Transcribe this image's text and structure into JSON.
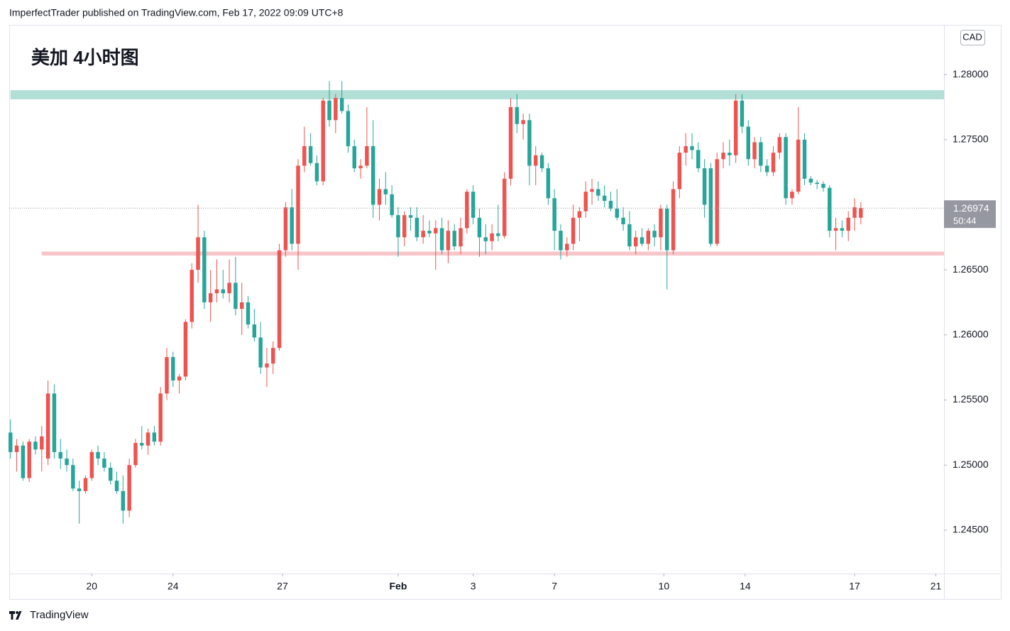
{
  "header": "ImperfectTrader published on TradingView.com, Feb 17, 2022 09:09 UTC+8",
  "footer": "TradingView",
  "chart_data": {
    "type": "candlestick",
    "title": "美加 4小时图",
    "currency": "CAD",
    "countdown": "50:44",
    "up_color": "#ef5350",
    "down_color": "#26a69a",
    "xlim": [
      -0.2,
      149.3
    ],
    "xticks": [
      {
        "value": 13,
        "label": "20"
      },
      {
        "value": 26,
        "label": "24"
      },
      {
        "value": 43.5,
        "label": "27"
      },
      {
        "value": 62,
        "label": "Feb"
      },
      {
        "value": 74,
        "label": "3"
      },
      {
        "value": 87,
        "label": "7"
      },
      {
        "value": 104.5,
        "label": "10"
      },
      {
        "value": 117.5,
        "label": "14"
      },
      {
        "value": 135,
        "label": "17"
      },
      {
        "value": 148,
        "label": "21"
      }
    ],
    "ylim": [
      1.24167,
      1.28382
    ],
    "yticks": [
      {
        "value": 1.28,
        "label": "1.28000"
      },
      {
        "value": 1.275,
        "label": "1.27500"
      },
      {
        "value": 1.27,
        "label": "1.27000"
      },
      {
        "value": 1.265,
        "label": "1.26500"
      },
      {
        "value": 1.26,
        "label": "1.26000"
      },
      {
        "value": 1.255,
        "label": "1.25500"
      },
      {
        "value": 1.25,
        "label": "1.25000"
      },
      {
        "value": 1.245,
        "label": "1.24500"
      }
    ],
    "zones": [
      {
        "start": 0,
        "from": 1.2781,
        "to": 1.2788,
        "color": "#b2dfd6"
      },
      {
        "start": 5,
        "from": 1.2661,
        "to": 1.2664,
        "color": "#f8c5c8"
      }
    ],
    "candles": [
      [
        1.2525,
        1.2535,
        1.2505,
        1.251
      ],
      [
        1.251,
        1.252,
        1.2495,
        1.2515
      ],
      [
        1.2515,
        1.2518,
        1.2488,
        1.249
      ],
      [
        1.249,
        1.252,
        1.2487,
        1.2518
      ],
      [
        1.2518,
        1.2522,
        1.2508,
        1.2512
      ],
      [
        1.2512,
        1.253,
        1.2495,
        1.2522
      ],
      [
        1.2505,
        1.2565,
        1.25,
        1.2555
      ],
      [
        1.2555,
        1.2562,
        1.2505,
        1.251
      ],
      [
        1.251,
        1.252,
        1.2497,
        1.2505
      ],
      [
        1.2505,
        1.2512,
        1.2495,
        1.25
      ],
      [
        1.25,
        1.2505,
        1.248,
        1.2482
      ],
      [
        1.2482,
        1.2488,
        1.2455,
        1.248
      ],
      [
        1.248,
        1.2492,
        1.2478,
        1.249
      ],
      [
        1.249,
        1.2512,
        1.2488,
        1.251
      ],
      [
        1.251,
        1.2515,
        1.25,
        1.2505
      ],
      [
        1.2505,
        1.251,
        1.2495,
        1.2498
      ],
      [
        1.2498,
        1.2502,
        1.2485,
        1.2488
      ],
      [
        1.2488,
        1.2495,
        1.2478,
        1.248
      ],
      [
        1.248,
        1.2492,
        1.2455,
        1.2465
      ],
      [
        1.2465,
        1.2505,
        1.246,
        1.25
      ],
      [
        1.25,
        1.252,
        1.2498,
        1.2517
      ],
      [
        1.2517,
        1.253,
        1.2512,
        1.2515
      ],
      [
        1.2515,
        1.2528,
        1.2508,
        1.2525
      ],
      [
        1.2525,
        1.253,
        1.2515,
        1.2518
      ],
      [
        1.2518,
        1.256,
        1.2515,
        1.2555
      ],
      [
        1.2555,
        1.259,
        1.255,
        1.2583
      ],
      [
        1.2583,
        1.2587,
        1.256,
        1.2565
      ],
      [
        1.2565,
        1.257,
        1.2555,
        1.2568
      ],
      [
        1.2568,
        1.2612,
        1.2565,
        1.261
      ],
      [
        1.261,
        1.2655,
        1.2605,
        1.265
      ],
      [
        1.265,
        1.27,
        1.264,
        1.2675
      ],
      [
        1.2675,
        1.268,
        1.262,
        1.2625
      ],
      [
        1.2625,
        1.265,
        1.261,
        1.2632
      ],
      [
        1.2632,
        1.2658,
        1.2625,
        1.2635
      ],
      [
        1.2635,
        1.265,
        1.2628,
        1.2632
      ],
      [
        1.2632,
        1.2658,
        1.2625,
        1.264
      ],
      [
        1.264,
        1.266,
        1.2615,
        1.262
      ],
      [
        1.262,
        1.264,
        1.26,
        1.2625
      ],
      [
        1.2625,
        1.263,
        1.2605,
        1.2608
      ],
      [
        1.2608,
        1.262,
        1.2595,
        1.2598
      ],
      [
        1.2598,
        1.261,
        1.257,
        1.2575
      ],
      [
        1.2575,
        1.259,
        1.256,
        1.2578
      ],
      [
        1.2578,
        1.2595,
        1.257,
        1.259
      ],
      [
        1.259,
        1.267,
        1.2588,
        1.2665
      ],
      [
        1.2665,
        1.2702,
        1.266,
        1.2698
      ],
      [
        1.2698,
        1.2712,
        1.2665,
        1.267
      ],
      [
        1.267,
        1.2735,
        1.265,
        1.273
      ],
      [
        1.273,
        1.276,
        1.2725,
        1.2745
      ],
      [
        1.2745,
        1.2755,
        1.273,
        1.2732
      ],
      [
        1.2732,
        1.2738,
        1.2715,
        1.2718
      ],
      [
        1.2718,
        1.2782,
        1.2715,
        1.278
      ],
      [
        1.278,
        1.2795,
        1.276,
        1.2765
      ],
      [
        1.2765,
        1.2785,
        1.2755,
        1.2782
      ],
      [
        1.2782,
        1.2795,
        1.277,
        1.2772
      ],
      [
        1.2772,
        1.2777,
        1.274,
        1.2745
      ],
      [
        1.2745,
        1.275,
        1.2725,
        1.2728
      ],
      [
        1.2728,
        1.2735,
        1.272,
        1.273
      ],
      [
        1.273,
        1.2775,
        1.2728,
        1.2745
      ],
      [
        1.2745,
        1.2765,
        1.269,
        1.27
      ],
      [
        1.27,
        1.272,
        1.2688,
        1.2712
      ],
      [
        1.2712,
        1.2725,
        1.27,
        1.2708
      ],
      [
        1.2708,
        1.2715,
        1.269,
        1.2692
      ],
      [
        1.2692,
        1.2698,
        1.266,
        1.2675
      ],
      [
        1.2675,
        1.2695,
        1.2668,
        1.2692
      ],
      [
        1.2692,
        1.2698,
        1.268,
        1.269
      ],
      [
        1.269,
        1.2698,
        1.2672,
        1.2675
      ],
      [
        1.2675,
        1.2692,
        1.267,
        1.268
      ],
      [
        1.268,
        1.2688,
        1.2675,
        1.2678
      ],
      [
        1.2678,
        1.2688,
        1.265,
        1.2682
      ],
      [
        1.2682,
        1.269,
        1.2662,
        1.2665
      ],
      [
        1.2665,
        1.2688,
        1.2655,
        1.268
      ],
      [
        1.268,
        1.2685,
        1.2665,
        1.2668
      ],
      [
        1.2668,
        1.269,
        1.2662,
        1.2682
      ],
      [
        1.2682,
        1.2712,
        1.2678,
        1.271
      ],
      [
        1.271,
        1.2715,
        1.2685,
        1.269
      ],
      [
        1.269,
        1.2697,
        1.266,
        1.2675
      ],
      [
        1.2675,
        1.2685,
        1.2662,
        1.2672
      ],
      [
        1.2672,
        1.2685,
        1.2665,
        1.2678
      ],
      [
        1.2678,
        1.27,
        1.2672,
        1.2676
      ],
      [
        1.2676,
        1.2725,
        1.2674,
        1.272
      ],
      [
        1.272,
        1.2782,
        1.2715,
        1.2775
      ],
      [
        1.2775,
        1.2785,
        1.2755,
        1.2762
      ],
      [
        1.2762,
        1.277,
        1.275,
        1.2765
      ],
      [
        1.2765,
        1.277,
        1.2715,
        1.273
      ],
      [
        1.273,
        1.2745,
        1.2715,
        1.2738
      ],
      [
        1.2738,
        1.274,
        1.2725,
        1.2728
      ],
      [
        1.2728,
        1.2732,
        1.27,
        1.2705
      ],
      [
        1.2705,
        1.2712,
        1.2665,
        1.268
      ],
      [
        1.268,
        1.2685,
        1.2658,
        1.2665
      ],
      [
        1.2665,
        1.2675,
        1.266,
        1.267
      ],
      [
        1.267,
        1.27,
        1.2665,
        1.269
      ],
      [
        1.269,
        1.2698,
        1.2672,
        1.2695
      ],
      [
        1.2695,
        1.2718,
        1.269,
        1.271
      ],
      [
        1.271,
        1.272,
        1.27,
        1.2712
      ],
      [
        1.2712,
        1.2718,
        1.2703,
        1.2707
      ],
      [
        1.2707,
        1.2715,
        1.2698,
        1.2703
      ],
      [
        1.2703,
        1.271,
        1.2695,
        1.2697
      ],
      [
        1.2697,
        1.2712,
        1.2688,
        1.269
      ],
      [
        1.269,
        1.2698,
        1.268,
        1.2685
      ],
      [
        1.2685,
        1.2695,
        1.2665,
        1.2668
      ],
      [
        1.2668,
        1.268,
        1.2662,
        1.2675
      ],
      [
        1.2675,
        1.2682,
        1.2668,
        1.267
      ],
      [
        1.267,
        1.2682,
        1.2665,
        1.268
      ],
      [
        1.268,
        1.2685,
        1.2668,
        1.2675
      ],
      [
        1.2675,
        1.27,
        1.2665,
        1.2697
      ],
      [
        1.2697,
        1.27,
        1.2635,
        1.2665
      ],
      [
        1.2665,
        1.2718,
        1.2662,
        1.2712
      ],
      [
        1.2712,
        1.2745,
        1.2705,
        1.274
      ],
      [
        1.274,
        1.2755,
        1.273,
        1.2745
      ],
      [
        1.2745,
        1.2755,
        1.2735,
        1.2742
      ],
      [
        1.2742,
        1.2748,
        1.2725,
        1.2728
      ],
      [
        1.2728,
        1.2735,
        1.269,
        1.27
      ],
      [
        1.2728,
        1.2732,
        1.2668,
        1.267
      ],
      [
        1.267,
        1.274,
        1.2668,
        1.2735
      ],
      [
        1.2735,
        1.2748,
        1.2728,
        1.274
      ],
      [
        1.274,
        1.275,
        1.273,
        1.2738
      ],
      [
        1.2738,
        1.2785,
        1.2732,
        1.278
      ],
      [
        1.278,
        1.2785,
        1.2755,
        1.276
      ],
      [
        1.276,
        1.2765,
        1.273,
        1.2735
      ],
      [
        1.2735,
        1.2752,
        1.2728,
        1.2748
      ],
      [
        1.2748,
        1.2752,
        1.2725,
        1.273
      ],
      [
        1.273,
        1.2735,
        1.2722,
        1.2725
      ],
      [
        1.2725,
        1.2745,
        1.2722,
        1.274
      ],
      [
        1.274,
        1.2755,
        1.2735,
        1.2752
      ],
      [
        1.2752,
        1.2755,
        1.27,
        1.2705
      ],
      [
        1.2705,
        1.2712,
        1.27,
        1.271
      ],
      [
        1.271,
        1.2775,
        1.2708,
        1.275
      ],
      [
        1.275,
        1.2755,
        1.2715,
        1.272
      ],
      [
        1.272,
        1.2722,
        1.2715,
        1.2717
      ],
      [
        1.2717,
        1.2719,
        1.2712,
        1.2716
      ],
      [
        1.2716,
        1.2718,
        1.271,
        1.2713
      ],
      [
        1.2713,
        1.2715,
        1.2675,
        1.268
      ],
      [
        1.268,
        1.269,
        1.2665,
        1.2682
      ],
      [
        1.2682,
        1.2688,
        1.2675,
        1.268
      ],
      [
        1.268,
        1.2695,
        1.2672,
        1.269
      ],
      [
        1.269,
        1.2705,
        1.268,
        1.2698
      ],
      [
        1.269,
        1.2702,
        1.2685,
        1.26974
      ]
    ]
  }
}
